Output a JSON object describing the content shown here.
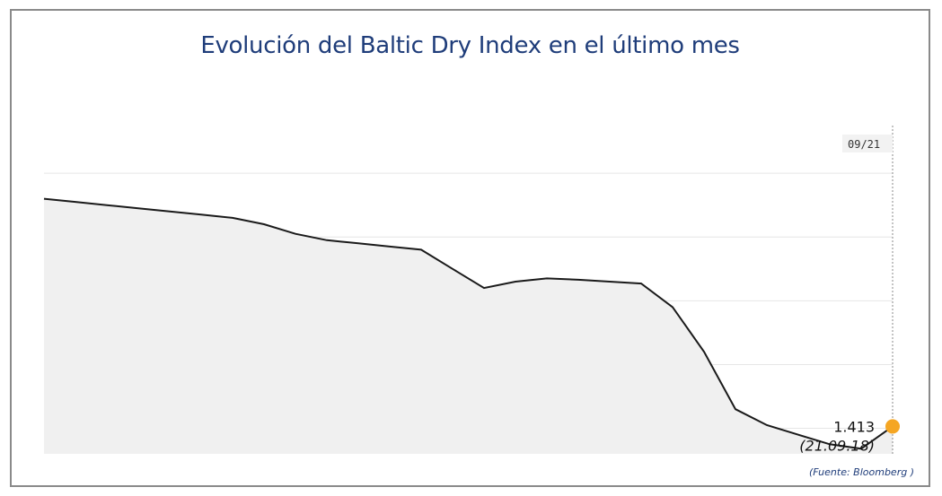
{
  "chart_data": {
    "type": "area",
    "title": "Evolución del Baltic Dry Index en el último mes",
    "xlabel": "",
    "ylabel": "",
    "x": [
      "1",
      "2",
      "3",
      "4",
      "5",
      "6",
      "7",
      "8",
      "9",
      "10",
      "11",
      "12",
      "13",
      "14",
      "15",
      "16",
      "17",
      "18",
      "19",
      "20",
      "21",
      "22",
      "23",
      "24",
      "25",
      "26",
      "27",
      "28"
    ],
    "series": [
      {
        "values": [
          1770,
          1765,
          1760,
          1755,
          1750,
          1745,
          1740,
          1730,
          1715,
          1705,
          1700,
          1695,
          1690,
          1660,
          1630,
          1640,
          1645,
          1643,
          1640,
          1637,
          1600,
          1530,
          1440,
          1415,
          1400,
          1385,
          1378,
          1413
        ]
      }
    ],
    "ylim": [
      1370,
      1910
    ],
    "grid": true,
    "highlight": {
      "index": 27,
      "value_label": "1.413",
      "date_label": "(21.09.18)",
      "marker_color": "#f5a623"
    },
    "crosshair_label": "09/21"
  },
  "source": "(Fuente: Bloomberg )",
  "colors": {
    "title": "#1f3d7a",
    "line": "#1a1a1a",
    "area": "#f0f0f0",
    "grid": "#e6e6e6"
  }
}
